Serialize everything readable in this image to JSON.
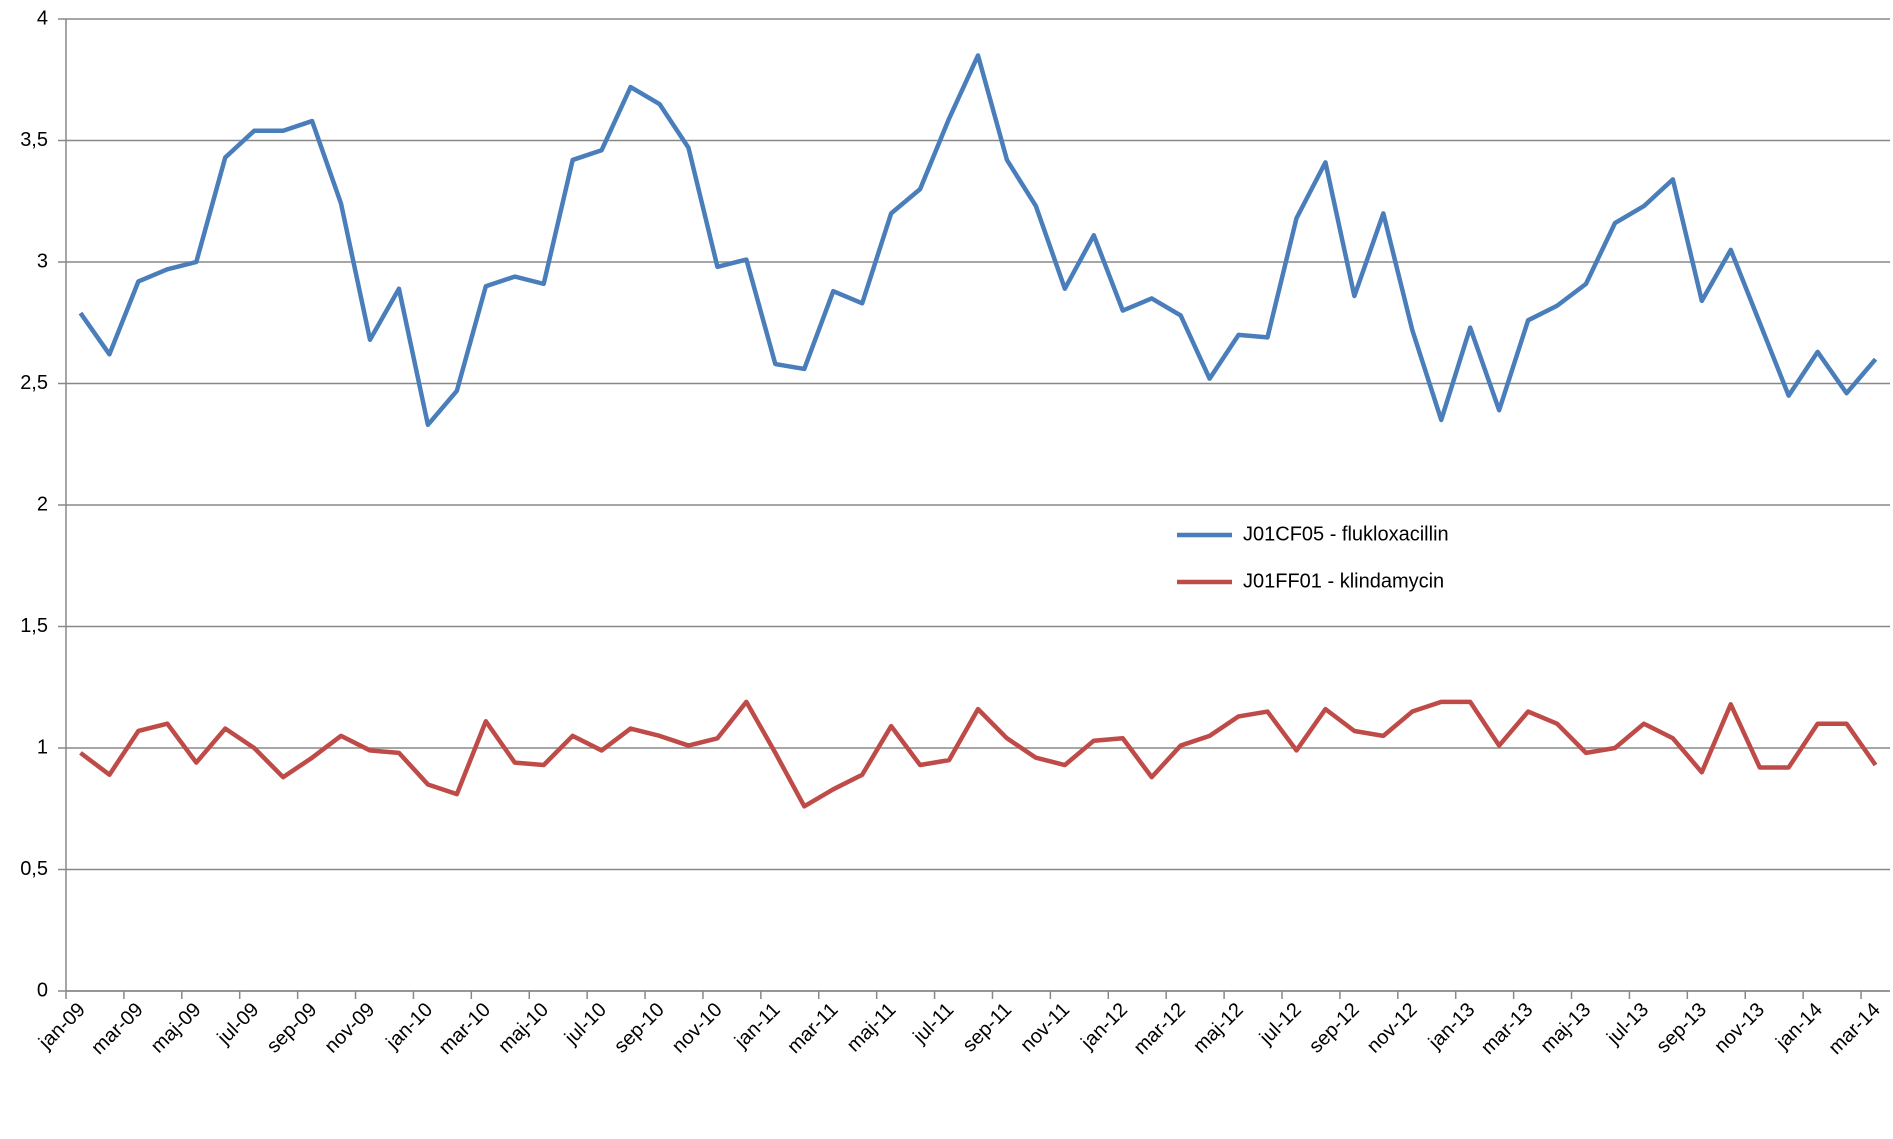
{
  "chart_data": {
    "type": "line",
    "categories": [
      "jan-09",
      null,
      "mar-09",
      null,
      "maj-09",
      null,
      "jul-09",
      null,
      "sep-09",
      null,
      "nov-09",
      null,
      "jan-10",
      null,
      "mar-10",
      null,
      "maj-10",
      null,
      "jul-10",
      null,
      "sep-10",
      null,
      "nov-10",
      null,
      "jan-11",
      null,
      "mar-11",
      null,
      "maj-11",
      null,
      "jul-11",
      null,
      "sep-11",
      null,
      "nov-11",
      null,
      "jan-12",
      null,
      "mar-12",
      null,
      "maj-12",
      null,
      "jul-12",
      null,
      "sep-12",
      null,
      "nov-12",
      null,
      "jan-13",
      null,
      "mar-13",
      null,
      "maj-13",
      null,
      "jul-13",
      null,
      "sep-13",
      null,
      "nov-13",
      null,
      "jan-14",
      null,
      "mar-14"
    ],
    "series": [
      {
        "name": "J01CF05 - flukloxacillin",
        "color": "#4a7ebb",
        "values": [
          2.79,
          2.62,
          2.92,
          2.97,
          3.0,
          3.43,
          3.54,
          3.54,
          3.58,
          3.24,
          2.68,
          2.89,
          2.33,
          2.47,
          2.9,
          2.94,
          2.91,
          3.42,
          3.46,
          3.72,
          3.65,
          3.47,
          2.98,
          3.01,
          2.58,
          2.56,
          2.88,
          2.83,
          3.2,
          3.3,
          3.59,
          3.85,
          3.42,
          3.23,
          2.89,
          3.11,
          2.8,
          2.85,
          2.78,
          2.52,
          2.7,
          2.69,
          3.18,
          3.41,
          2.86,
          3.2,
          2.72,
          2.35,
          2.73,
          2.39,
          2.76,
          2.82,
          2.91,
          3.16,
          3.23,
          3.34,
          2.84,
          3.05,
          2.75,
          2.45,
          2.63,
          2.46,
          2.6
        ]
      },
      {
        "name": "J01FF01 - klindamycin",
        "color": "#be4b48",
        "values": [
          0.98,
          0.89,
          1.07,
          1.1,
          0.94,
          1.08,
          1.0,
          0.88,
          0.96,
          1.05,
          0.99,
          0.98,
          0.85,
          0.81,
          1.11,
          0.94,
          0.93,
          1.05,
          0.99,
          1.08,
          1.05,
          1.01,
          1.04,
          1.19,
          0.98,
          0.76,
          0.83,
          0.89,
          1.09,
          0.93,
          0.95,
          1.16,
          1.04,
          0.96,
          0.93,
          1.03,
          1.04,
          0.88,
          1.01,
          1.05,
          1.13,
          1.15,
          0.99,
          1.16,
          1.07,
          1.05,
          1.15,
          1.19,
          1.19,
          1.01,
          1.15,
          1.1,
          0.98,
          1.0,
          1.1,
          1.04,
          0.9,
          1.18,
          0.92,
          0.92,
          1.1,
          1.1,
          0.93
        ]
      }
    ],
    "ylim": [
      0,
      4
    ],
    "yticks": [
      0,
      {
        "value": 0.5,
        "label": "0,5"
      },
      1,
      {
        "value": 1.5,
        "label": "1,5"
      },
      2,
      {
        "value": 2.5,
        "label": "2,5"
      },
      3,
      {
        "value": 3.5,
        "label": "3,5"
      },
      4
    ],
    "grid": true
  }
}
